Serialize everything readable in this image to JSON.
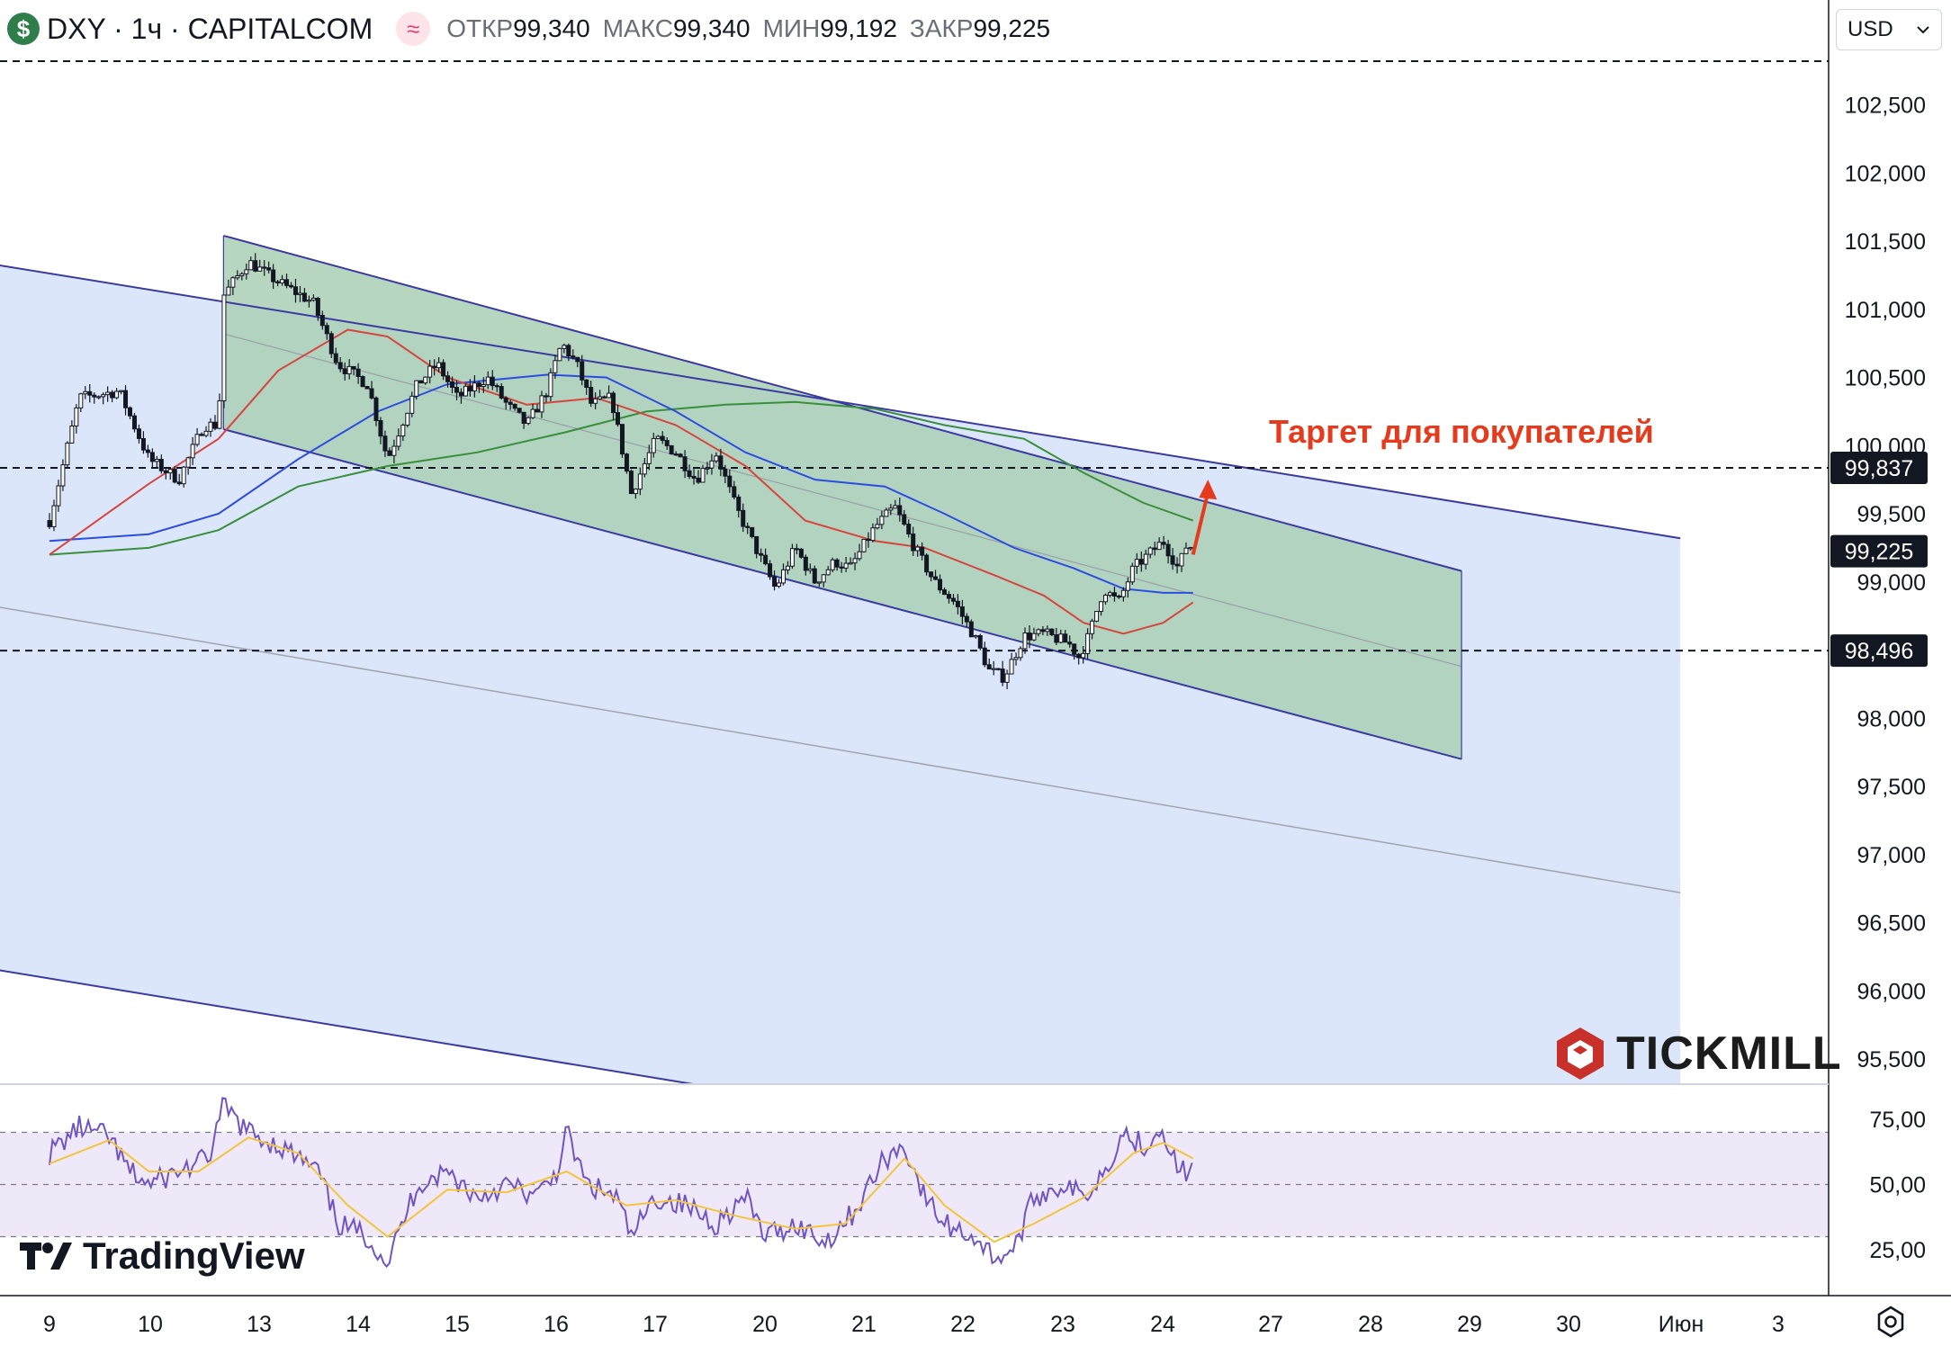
{
  "header": {
    "symbol_line": "DXY · 1ч · CAPITALCOM",
    "ohlc": [
      {
        "label": "ОТКР",
        "value": "99,340"
      },
      {
        "label": "МАКС",
        "value": "99,340"
      },
      {
        "label": "МИН",
        "value": "99,192"
      },
      {
        "label": "ЗАКР",
        "value": "99,225"
      }
    ],
    "currency": "USD"
  },
  "icons": {
    "symbol_icon": "dollar-icon",
    "indicator_icon": "wave-icon",
    "dropdown_icon": "chevron-down-icon",
    "settings_icon": "gear-icon"
  },
  "colors": {
    "candle": "#131722",
    "ma_fast": "#d8453c",
    "ma_mid": "#2c4de0",
    "ma_slow": "#3a8f3a",
    "channel_outer_fill": "#dbe6fb",
    "channel_inner_fill": "#a9cfb4",
    "rsi_line": "#7054c2",
    "rsi_signal": "#f2c53d",
    "rsi_band": "#efe8f8",
    "annotation": "#e53a1c",
    "price_label_bg": "#131722"
  },
  "annotation": {
    "text": "Таргет для покупателей"
  },
  "logos": {
    "tradingview": "TradingView",
    "tickmill": "TICKMILL"
  },
  "chart_data": [
    {
      "type": "candlestick",
      "title": "DXY · 1ч · CAPITALCOM",
      "y_ticks": [
        "102,500",
        "102,000",
        "101,500",
        "101,000",
        "100,500",
        "100,000",
        "99,500",
        "99,000",
        "98,000",
        "97,500",
        "97,000",
        "96,500",
        "96,000",
        "95,500"
      ],
      "ylim": [
        95.3,
        103.0
      ],
      "x_ticks": [
        "9",
        "10",
        "13",
        "14",
        "15",
        "16",
        "17",
        "20",
        "21",
        "22",
        "23",
        "24",
        "27",
        "28",
        "29",
        "30",
        "Июн",
        "3"
      ],
      "price_labels": [
        {
          "value": "99,837",
          "style": "dashed level"
        },
        {
          "value": "99,225",
          "style": "last price"
        },
        {
          "value": "98,496",
          "style": "dashed level"
        }
      ],
      "top_dashed_level": 102.82,
      "close_path": [
        {
          "t": 0,
          "v": 99.45
        },
        {
          "t": 0.3,
          "v": 100.35
        },
        {
          "t": 0.7,
          "v": 100.4
        },
        {
          "t": 1.0,
          "v": 99.9
        },
        {
          "t": 1.3,
          "v": 99.75
        },
        {
          "t": 1.55,
          "v": 100.15
        },
        {
          "t": 1.7,
          "v": 100.15
        },
        {
          "t": 1.75,
          "v": 101.1
        },
        {
          "t": 2.0,
          "v": 101.35
        },
        {
          "t": 2.3,
          "v": 101.2
        },
        {
          "t": 2.65,
          "v": 101.05
        },
        {
          "t": 2.9,
          "v": 100.6
        },
        {
          "t": 3.2,
          "v": 100.45
        },
        {
          "t": 3.4,
          "v": 99.9
        },
        {
          "t": 3.7,
          "v": 100.45
        },
        {
          "t": 3.9,
          "v": 100.6
        },
        {
          "t": 4.1,
          "v": 100.35
        },
        {
          "t": 4.4,
          "v": 100.5
        },
        {
          "t": 4.6,
          "v": 100.3
        },
        {
          "t": 4.8,
          "v": 100.15
        },
        {
          "t": 5.0,
          "v": 100.4
        },
        {
          "t": 5.15,
          "v": 100.75
        },
        {
          "t": 5.3,
          "v": 100.6
        },
        {
          "t": 5.45,
          "v": 100.3
        },
        {
          "t": 5.65,
          "v": 100.35
        },
        {
          "t": 5.85,
          "v": 99.65
        },
        {
          "t": 6.1,
          "v": 100.05
        },
        {
          "t": 6.3,
          "v": 99.95
        },
        {
          "t": 6.5,
          "v": 99.75
        },
        {
          "t": 6.7,
          "v": 99.95
        },
        {
          "t": 6.9,
          "v": 99.55
        },
        {
          "t": 7.1,
          "v": 99.25
        },
        {
          "t": 7.3,
          "v": 98.95
        },
        {
          "t": 7.5,
          "v": 99.25
        },
        {
          "t": 7.7,
          "v": 99.0
        },
        {
          "t": 7.9,
          "v": 99.15
        },
        {
          "t": 8.05,
          "v": 99.1
        },
        {
          "t": 8.3,
          "v": 99.4
        },
        {
          "t": 8.5,
          "v": 99.55
        },
        {
          "t": 8.7,
          "v": 99.25
        },
        {
          "t": 8.9,
          "v": 99.0
        },
        {
          "t": 9.1,
          "v": 98.85
        },
        {
          "t": 9.3,
          "v": 98.6
        },
        {
          "t": 9.45,
          "v": 98.35
        },
        {
          "t": 9.6,
          "v": 98.3
        },
        {
          "t": 9.8,
          "v": 98.6
        },
        {
          "t": 10.0,
          "v": 98.62
        },
        {
          "t": 10.25,
          "v": 98.55
        },
        {
          "t": 10.35,
          "v": 98.45
        },
        {
          "t": 10.45,
          "v": 98.6
        },
        {
          "t": 10.6,
          "v": 98.95
        },
        {
          "t": 10.75,
          "v": 98.85
        },
        {
          "t": 10.9,
          "v": 99.1
        },
        {
          "t": 11.05,
          "v": 99.2
        },
        {
          "t": 11.2,
          "v": 99.3
        },
        {
          "t": 11.35,
          "v": 99.1
        },
        {
          "t": 11.45,
          "v": 99.3
        },
        {
          "t": 11.5,
          "v": 99.22
        }
      ],
      "channel_outer": {
        "top_line": [
          {
            "t": -2,
            "v": 101.5
          },
          {
            "t": 16.4,
            "v": 99.32
          }
        ],
        "middle_line": [
          {
            "t": -2,
            "v": 99.0
          },
          {
            "t": 16.4,
            "v": 96.72
          }
        ],
        "bottom_line": [
          {
            "t": -2,
            "v": 96.33
          },
          {
            "t": 6.6,
            "v": 95.3
          }
        ]
      },
      "channel_inner": {
        "top_line": [
          {
            "t": 1.75,
            "v": 101.54
          },
          {
            "t": 14.2,
            "v": 99.08
          }
        ],
        "middle_line": [
          {
            "t": 1.75,
            "v": 100.82
          },
          {
            "t": 14.2,
            "v": 98.38
          }
        ],
        "bottom_line": [
          {
            "t": 1.75,
            "v": 100.12
          },
          {
            "t": 14.2,
            "v": 97.7
          }
        ]
      },
      "ma_fast": [
        {
          "t": 0,
          "v": 99.2
        },
        {
          "t": 1.0,
          "v": 99.72
        },
        {
          "t": 1.7,
          "v": 100.05
        },
        {
          "t": 2.3,
          "v": 100.55
        },
        {
          "t": 3.0,
          "v": 100.85
        },
        {
          "t": 3.4,
          "v": 100.8
        },
        {
          "t": 4.0,
          "v": 100.5
        },
        {
          "t": 4.8,
          "v": 100.3
        },
        {
          "t": 5.5,
          "v": 100.35
        },
        {
          "t": 6.3,
          "v": 100.15
        },
        {
          "t": 7.0,
          "v": 99.85
        },
        {
          "t": 7.6,
          "v": 99.45
        },
        {
          "t": 8.3,
          "v": 99.3
        },
        {
          "t": 8.8,
          "v": 99.25
        },
        {
          "t": 9.5,
          "v": 99.05
        },
        {
          "t": 10.0,
          "v": 98.9
        },
        {
          "t": 10.4,
          "v": 98.7
        },
        {
          "t": 10.8,
          "v": 98.62
        },
        {
          "t": 11.2,
          "v": 98.7
        },
        {
          "t": 11.5,
          "v": 98.85
        }
      ],
      "ma_mid": [
        {
          "t": 0,
          "v": 99.3
        },
        {
          "t": 1.0,
          "v": 99.35
        },
        {
          "t": 1.7,
          "v": 99.5
        },
        {
          "t": 2.5,
          "v": 99.9
        },
        {
          "t": 3.3,
          "v": 100.25
        },
        {
          "t": 4.0,
          "v": 100.45
        },
        {
          "t": 5.0,
          "v": 100.52
        },
        {
          "t": 5.6,
          "v": 100.5
        },
        {
          "t": 6.3,
          "v": 100.25
        },
        {
          "t": 7.0,
          "v": 99.95
        },
        {
          "t": 7.7,
          "v": 99.75
        },
        {
          "t": 8.4,
          "v": 99.7
        },
        {
          "t": 9.0,
          "v": 99.5
        },
        {
          "t": 9.7,
          "v": 99.25
        },
        {
          "t": 10.3,
          "v": 99.1
        },
        {
          "t": 10.8,
          "v": 98.95
        },
        {
          "t": 11.2,
          "v": 98.92
        },
        {
          "t": 11.5,
          "v": 98.92
        }
      ],
      "ma_slow": [
        {
          "t": 0,
          "v": 99.2
        },
        {
          "t": 1.0,
          "v": 99.25
        },
        {
          "t": 1.7,
          "v": 99.38
        },
        {
          "t": 2.5,
          "v": 99.7
        },
        {
          "t": 3.4,
          "v": 99.85
        },
        {
          "t": 4.3,
          "v": 99.95
        },
        {
          "t": 5.2,
          "v": 100.1
        },
        {
          "t": 6.0,
          "v": 100.25
        },
        {
          "t": 6.8,
          "v": 100.3
        },
        {
          "t": 7.5,
          "v": 100.32
        },
        {
          "t": 8.3,
          "v": 100.27
        },
        {
          "t": 9.0,
          "v": 100.15
        },
        {
          "t": 9.8,
          "v": 100.05
        },
        {
          "t": 10.4,
          "v": 99.8
        },
        {
          "t": 11.0,
          "v": 99.58
        },
        {
          "t": 11.5,
          "v": 99.45
        }
      ],
      "target_arrow": {
        "from": {
          "t": 11.5,
          "v": 99.2
        },
        "to": {
          "t": 11.65,
          "v": 99.75
        }
      }
    },
    {
      "type": "line",
      "title": "RSI",
      "y_ticks": [
        "75,00",
        "50,00",
        "25,00"
      ],
      "ylim": [
        12,
        90
      ],
      "band": [
        30,
        70
      ],
      "rsi": [
        {
          "t": 0,
          "v": 62
        },
        {
          "t": 0.3,
          "v": 72
        },
        {
          "t": 0.6,
          "v": 68
        },
        {
          "t": 0.8,
          "v": 55
        },
        {
          "t": 1.0,
          "v": 50
        },
        {
          "t": 1.3,
          "v": 55
        },
        {
          "t": 1.6,
          "v": 60
        },
        {
          "t": 1.75,
          "v": 80
        },
        {
          "t": 2.0,
          "v": 70
        },
        {
          "t": 2.3,
          "v": 65
        },
        {
          "t": 2.7,
          "v": 55
        },
        {
          "t": 2.9,
          "v": 35
        },
        {
          "t": 3.2,
          "v": 30
        },
        {
          "t": 3.4,
          "v": 20
        },
        {
          "t": 3.7,
          "v": 50
        },
        {
          "t": 4.0,
          "v": 55
        },
        {
          "t": 4.3,
          "v": 45
        },
        {
          "t": 4.6,
          "v": 50
        },
        {
          "t": 4.9,
          "v": 45
        },
        {
          "t": 5.1,
          "v": 55
        },
        {
          "t": 5.2,
          "v": 70
        },
        {
          "t": 5.4,
          "v": 50
        },
        {
          "t": 5.7,
          "v": 45
        },
        {
          "t": 5.85,
          "v": 30
        },
        {
          "t": 6.1,
          "v": 45
        },
        {
          "t": 6.4,
          "v": 42
        },
        {
          "t": 6.7,
          "v": 35
        },
        {
          "t": 7.0,
          "v": 45
        },
        {
          "t": 7.2,
          "v": 30
        },
        {
          "t": 7.5,
          "v": 35
        },
        {
          "t": 7.8,
          "v": 28
        },
        {
          "t": 8.1,
          "v": 40
        },
        {
          "t": 8.4,
          "v": 60
        },
        {
          "t": 8.6,
          "v": 65
        },
        {
          "t": 8.8,
          "v": 45
        },
        {
          "t": 9.0,
          "v": 35
        },
        {
          "t": 9.3,
          "v": 30
        },
        {
          "t": 9.5,
          "v": 22
        },
        {
          "t": 9.7,
          "v": 25
        },
        {
          "t": 9.9,
          "v": 45
        },
        {
          "t": 10.2,
          "v": 50
        },
        {
          "t": 10.4,
          "v": 45
        },
        {
          "t": 10.6,
          "v": 55
        },
        {
          "t": 10.8,
          "v": 70
        },
        {
          "t": 11.0,
          "v": 65
        },
        {
          "t": 11.2,
          "v": 72
        },
        {
          "t": 11.35,
          "v": 55
        },
        {
          "t": 11.5,
          "v": 55
        }
      ],
      "signal": [
        {
          "t": 0,
          "v": 58
        },
        {
          "t": 0.6,
          "v": 67
        },
        {
          "t": 1.0,
          "v": 55
        },
        {
          "t": 1.5,
          "v": 55
        },
        {
          "t": 2.0,
          "v": 68
        },
        {
          "t": 2.5,
          "v": 62
        },
        {
          "t": 3.0,
          "v": 42
        },
        {
          "t": 3.4,
          "v": 30
        },
        {
          "t": 4.0,
          "v": 48
        },
        {
          "t": 4.6,
          "v": 47
        },
        {
          "t": 5.2,
          "v": 55
        },
        {
          "t": 5.8,
          "v": 42
        },
        {
          "t": 6.3,
          "v": 44
        },
        {
          "t": 6.9,
          "v": 38
        },
        {
          "t": 7.5,
          "v": 33
        },
        {
          "t": 8.0,
          "v": 35
        },
        {
          "t": 8.6,
          "v": 60
        },
        {
          "t": 9.0,
          "v": 42
        },
        {
          "t": 9.5,
          "v": 28
        },
        {
          "t": 9.9,
          "v": 35
        },
        {
          "t": 10.4,
          "v": 45
        },
        {
          "t": 10.9,
          "v": 62
        },
        {
          "t": 11.2,
          "v": 66
        },
        {
          "t": 11.5,
          "v": 60
        }
      ]
    }
  ]
}
